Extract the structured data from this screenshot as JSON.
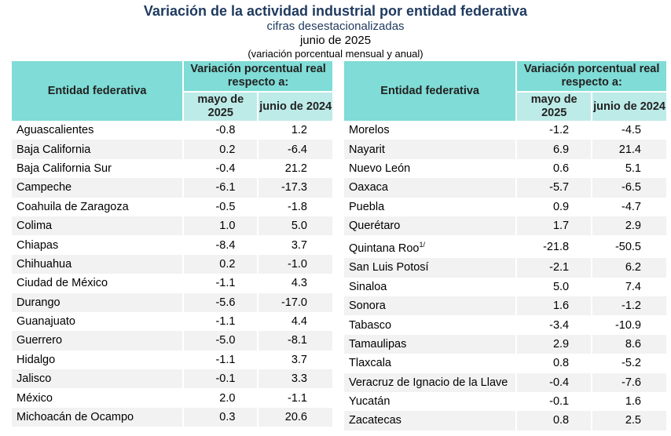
{
  "title": "Variación de la actividad industrial por entidad federativa",
  "subtitle": "cifras desestacionalizadas",
  "period": "junio de 2025",
  "note": "(variación porcentual mensual y anual)",
  "header": {
    "entity": "Entidad federativa",
    "variation": "Variación porcentual real respecto a:",
    "col1": "mayo de 2025",
    "col2": "junio de 2024"
  },
  "left_rows": [
    [
      "Aguascalientes",
      "-0.8",
      "1.2"
    ],
    [
      "Baja California",
      "0.2",
      "-6.4"
    ],
    [
      "Baja California Sur",
      "-0.4",
      "21.2"
    ],
    [
      "Campeche",
      "-6.1",
      "-17.3"
    ],
    [
      "Coahuila de Zaragoza",
      "-0.5",
      "-1.8"
    ],
    [
      "Colima",
      "1.0",
      "5.0"
    ],
    [
      "Chiapas",
      "-8.4",
      "3.7"
    ],
    [
      "Chihuahua",
      "0.2",
      "-1.0"
    ],
    [
      "Ciudad de México",
      "-1.1",
      "4.3"
    ],
    [
      "Durango",
      "-5.6",
      "-17.0"
    ],
    [
      "Guanajuato",
      "-1.1",
      "4.4"
    ],
    [
      "Guerrero",
      "-5.0",
      "-8.1"
    ],
    [
      "Hidalgo",
      "-1.1",
      "3.7"
    ],
    [
      "Jalisco",
      "-0.1",
      "3.3"
    ],
    [
      "México",
      "2.0",
      "-1.1"
    ],
    [
      "Michoacán de Ocampo",
      "0.3",
      "20.6"
    ]
  ],
  "right_rows": [
    [
      "Morelos",
      "-1.2",
      "-4.5"
    ],
    [
      "Nayarit",
      "6.9",
      "21.4"
    ],
    [
      "Nuevo León",
      "0.6",
      "5.1"
    ],
    [
      "Oaxaca",
      "-5.7",
      "-6.5"
    ],
    [
      "Puebla",
      "0.9",
      "-4.7"
    ],
    [
      "Querétaro",
      "1.7",
      "2.9"
    ],
    [
      "Quintana Roo",
      "-21.8",
      "-50.5",
      "1/"
    ],
    [
      "San Luis Potosí",
      "-2.1",
      "6.2"
    ],
    [
      "Sinaloa",
      "5.0",
      "7.4"
    ],
    [
      "Sonora",
      "1.6",
      "-1.2"
    ],
    [
      "Tabasco",
      "-3.4",
      "-10.9"
    ],
    [
      "Tamaulipas",
      "2.9",
      "8.6"
    ],
    [
      "Tlaxcala",
      "0.8",
      "-5.2"
    ],
    [
      "Veracruz de Ignacio de la Llave",
      "-0.4",
      "-7.6"
    ],
    [
      "Yucatán",
      "-0.1",
      "1.6"
    ],
    [
      "Zacatecas",
      "0.8",
      "2.5"
    ]
  ]
}
